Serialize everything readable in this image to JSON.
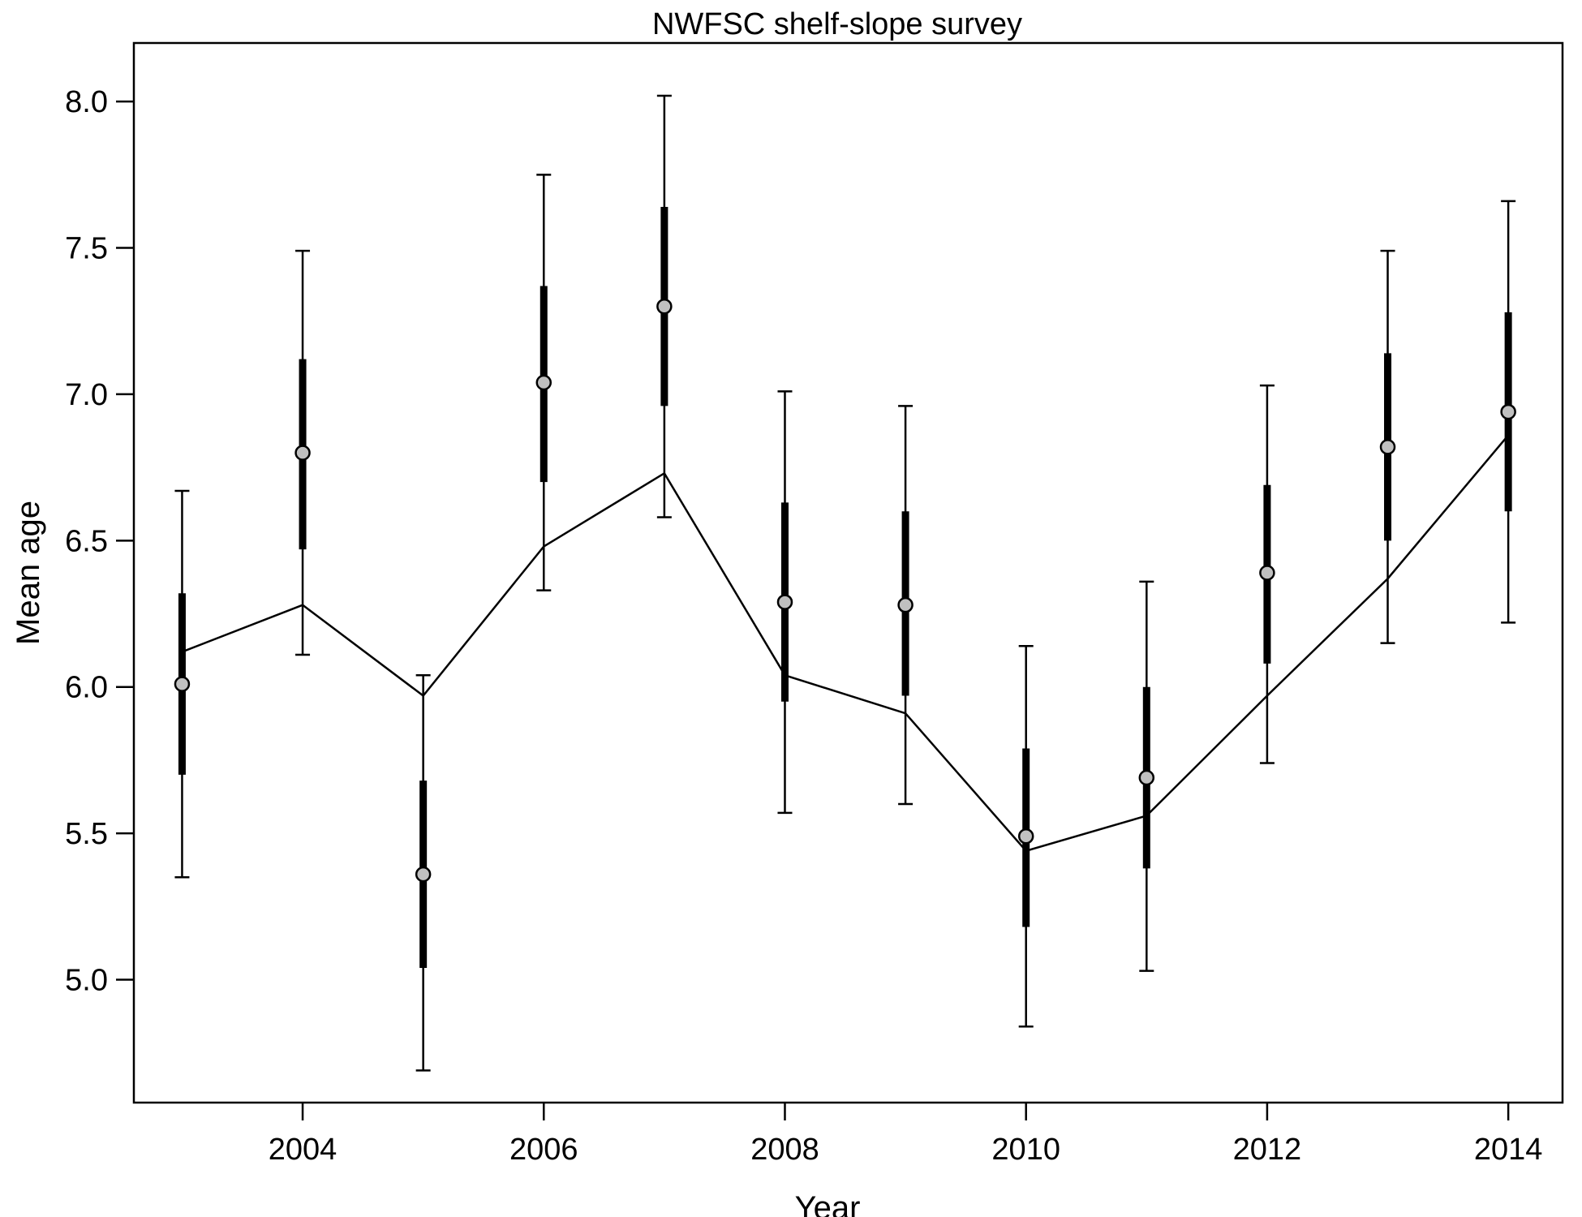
{
  "chart_data": {
    "type": "line",
    "title": "NWFSC shelf-slope survey",
    "xlabel": "Year",
    "ylabel": "Mean age",
    "xlim": [
      2002.6,
      2014.45
    ],
    "ylim": [
      4.58,
      8.2
    ],
    "x_ticks": [
      2004,
      2006,
      2008,
      2010,
      2012,
      2014
    ],
    "x_tick_labels": [
      "2004",
      "2006",
      "2008",
      "2010",
      "2012",
      "2014"
    ],
    "y_ticks": [
      5.0,
      5.5,
      6.0,
      6.5,
      7.0,
      7.5,
      8.0
    ],
    "y_tick_labels": [
      "5.0",
      "5.5",
      "6.0",
      "6.5",
      "7.0",
      "7.5",
      "8.0"
    ],
    "grid": false,
    "colors": {
      "point_fill": "#c0c0c0",
      "ink": "#000000"
    },
    "series": [
      {
        "kind": "observed",
        "x": [
          2003,
          2004,
          2005,
          2006,
          2007,
          2008,
          2009,
          2010,
          2011,
          2012,
          2013,
          2014
        ],
        "values": [
          6.01,
          6.8,
          5.36,
          7.04,
          7.3,
          6.29,
          6.28,
          5.49,
          5.69,
          6.39,
          6.82,
          6.94
        ],
        "inner_low": [
          5.7,
          6.47,
          5.04,
          6.7,
          6.96,
          5.95,
          5.97,
          5.18,
          5.38,
          6.08,
          6.5,
          6.6
        ],
        "inner_high": [
          6.32,
          7.12,
          5.68,
          7.37,
          7.64,
          6.63,
          6.6,
          5.79,
          6.0,
          6.69,
          7.14,
          7.28
        ],
        "outer_low": [
          5.35,
          6.11,
          4.69,
          6.33,
          6.58,
          5.57,
          5.6,
          4.84,
          5.03,
          5.74,
          6.15,
          6.22
        ],
        "outer_high": [
          6.67,
          7.49,
          6.04,
          7.75,
          8.02,
          7.01,
          6.96,
          6.14,
          6.36,
          7.03,
          7.49,
          7.66
        ]
      },
      {
        "kind": "expected",
        "x": [
          2003,
          2004,
          2005,
          2006,
          2007,
          2008,
          2009,
          2010,
          2011,
          2012,
          2013,
          2014
        ],
        "values": [
          6.12,
          6.28,
          5.97,
          6.48,
          6.73,
          6.04,
          5.91,
          5.44,
          5.56,
          5.97,
          6.37,
          6.86
        ]
      }
    ]
  }
}
